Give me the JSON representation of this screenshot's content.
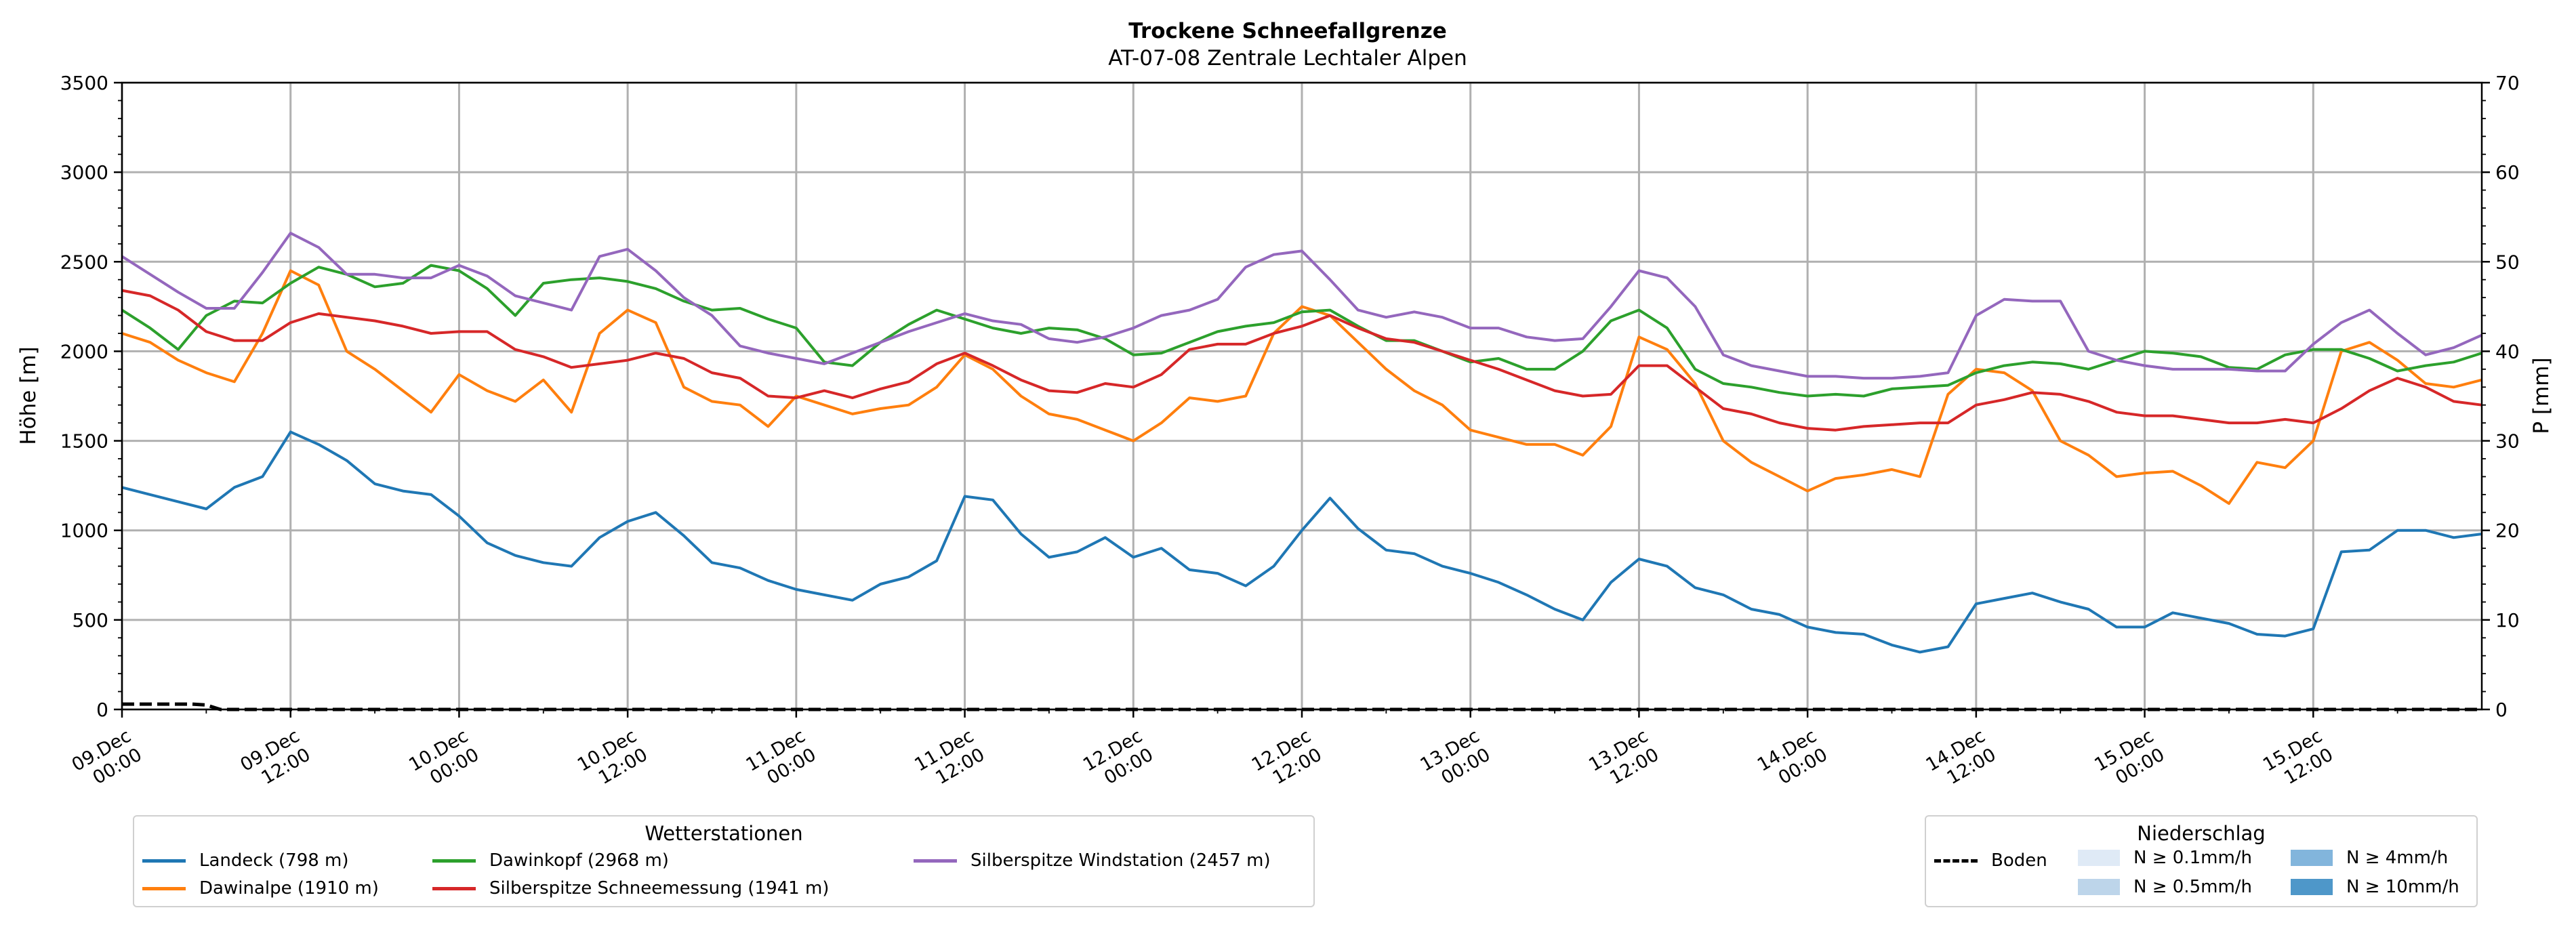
{
  "chart_data": {
    "type": "line",
    "title": "Trockene Schneefallgrenze",
    "subtitle": "AT-07-08 Zentrale Lechtaler Alpen",
    "ylabel": "Höhe [m]",
    "ylabel_right": "P [mm]",
    "ylim": [
      0,
      3500
    ],
    "ylim_right": [
      0,
      70
    ],
    "yticks": [
      0,
      500,
      1000,
      1500,
      2000,
      2500,
      3000,
      3500
    ],
    "yticks_right": [
      0,
      10,
      20,
      30,
      40,
      50,
      60,
      70
    ],
    "x_range_hours": [
      0,
      168
    ],
    "x_ticks": [
      {
        "hour": 0,
        "label1": "09.Dec",
        "label2": "00:00"
      },
      {
        "hour": 12,
        "label1": "09.Dec",
        "label2": "12:00"
      },
      {
        "hour": 24,
        "label1": "10.Dec",
        "label2": "00:00"
      },
      {
        "hour": 36,
        "label1": "10.Dec",
        "label2": "12:00"
      },
      {
        "hour": 48,
        "label1": "11.Dec",
        "label2": "00:00"
      },
      {
        "hour": 60,
        "label1": "11.Dec",
        "label2": "12:00"
      },
      {
        "hour": 72,
        "label1": "12.Dec",
        "label2": "00:00"
      },
      {
        "hour": 84,
        "label1": "12.Dec",
        "label2": "12:00"
      },
      {
        "hour": 96,
        "label1": "13.Dec",
        "label2": "00:00"
      },
      {
        "hour": 108,
        "label1": "13.Dec",
        "label2": "12:00"
      },
      {
        "hour": 120,
        "label1": "14.Dec",
        "label2": "00:00"
      },
      {
        "hour": 132,
        "label1": "14.Dec",
        "label2": "12:00"
      },
      {
        "hour": 144,
        "label1": "15.Dec",
        "label2": "00:00"
      },
      {
        "hour": 156,
        "label1": "15.Dec",
        "label2": "12:00"
      }
    ],
    "grid": true,
    "series": [
      {
        "name": "Landeck (798 m)",
        "color": "#1f77b4",
        "hours": [
          0,
          2,
          4,
          6,
          8,
          10,
          12,
          14,
          16,
          18,
          20,
          22,
          24,
          26,
          28,
          30,
          32,
          34,
          36,
          38,
          40,
          42,
          44,
          46,
          48,
          50,
          52,
          54,
          56,
          58,
          60,
          62,
          64,
          66,
          68,
          70,
          72,
          74,
          76,
          78,
          80,
          82,
          84,
          86,
          88,
          90,
          92,
          94,
          96,
          98,
          100,
          102,
          104,
          106,
          108,
          110,
          112,
          114,
          116,
          118,
          120,
          122,
          124,
          126,
          128,
          130,
          132,
          134,
          136,
          138,
          140,
          142,
          144,
          146,
          148,
          150,
          152,
          154,
          156,
          158,
          160,
          162,
          164,
          166,
          168
        ],
        "values": [
          1240,
          1200,
          1160,
          1120,
          1240,
          1300,
          1550,
          1480,
          1390,
          1260,
          1220,
          1200,
          1080,
          930,
          860,
          820,
          800,
          960,
          1050,
          1100,
          970,
          820,
          790,
          720,
          670,
          640,
          610,
          700,
          740,
          830,
          1190,
          1170,
          980,
          850,
          880,
          960,
          850,
          900,
          780,
          760,
          690,
          800,
          1000,
          1180,
          1010,
          890,
          870,
          800,
          760,
          710,
          640,
          560,
          500,
          710,
          840,
          800,
          680,
          640,
          560,
          530,
          460,
          430,
          420,
          360,
          320,
          350,
          590,
          620,
          650,
          600,
          560,
          460,
          460,
          540,
          510,
          480,
          420,
          410,
          450,
          880,
          890,
          1000,
          1000,
          960,
          980
        ]
      },
      {
        "name": "Dawinalpe (1910 m)",
        "color": "#ff7f0e",
        "hours": [
          0,
          2,
          4,
          6,
          8,
          10,
          12,
          14,
          16,
          18,
          20,
          22,
          24,
          26,
          28,
          30,
          32,
          34,
          36,
          38,
          40,
          42,
          44,
          46,
          48,
          50,
          52,
          54,
          56,
          58,
          60,
          62,
          64,
          66,
          68,
          70,
          72,
          74,
          76,
          78,
          80,
          82,
          84,
          86,
          88,
          90,
          92,
          94,
          96,
          98,
          100,
          102,
          104,
          106,
          108,
          110,
          112,
          114,
          116,
          118,
          120,
          122,
          124,
          126,
          128,
          130,
          132,
          134,
          136,
          138,
          140,
          142,
          144,
          146,
          148,
          150,
          152,
          154,
          156,
          158,
          160,
          162,
          164,
          166,
          168
        ],
        "values": [
          2100,
          2050,
          1950,
          1880,
          1830,
          2100,
          2450,
          2370,
          2000,
          1900,
          1780,
          1660,
          1870,
          1780,
          1720,
          1840,
          1660,
          2100,
          2230,
          2160,
          1800,
          1720,
          1700,
          1580,
          1750,
          1700,
          1650,
          1680,
          1700,
          1800,
          1980,
          1900,
          1750,
          1650,
          1620,
          1560,
          1500,
          1600,
          1740,
          1720,
          1750,
          2100,
          2250,
          2200,
          2050,
          1900,
          1780,
          1700,
          1560,
          1520,
          1480,
          1480,
          1420,
          1580,
          2080,
          2010,
          1820,
          1500,
          1380,
          1300,
          1220,
          1290,
          1310,
          1340,
          1300,
          1760,
          1900,
          1880,
          1780,
          1500,
          1420,
          1300,
          1320,
          1330,
          1250,
          1150,
          1380,
          1350,
          1500,
          2000,
          2050,
          1950,
          1820,
          1800,
          1840
        ]
      },
      {
        "name": "Dawinkopf (2968 m)",
        "color": "#2ca02c",
        "hours": [
          0,
          2,
          4,
          6,
          8,
          10,
          12,
          14,
          16,
          18,
          20,
          22,
          24,
          26,
          28,
          30,
          32,
          34,
          36,
          38,
          40,
          42,
          44,
          46,
          48,
          50,
          52,
          54,
          56,
          58,
          60,
          62,
          64,
          66,
          68,
          70,
          72,
          74,
          76,
          78,
          80,
          82,
          84,
          86,
          88,
          90,
          92,
          94,
          96,
          98,
          100,
          102,
          104,
          106,
          108,
          110,
          112,
          114,
          116,
          118,
          120,
          122,
          124,
          126,
          128,
          130,
          132,
          134,
          136,
          138,
          140,
          142,
          144,
          146,
          148,
          150,
          152,
          154,
          156,
          158,
          160,
          162,
          164,
          166,
          168
        ],
        "values": [
          2230,
          2130,
          2010,
          2200,
          2280,
          2270,
          2380,
          2470,
          2430,
          2360,
          2380,
          2480,
          2450,
          2350,
          2200,
          2380,
          2400,
          2410,
          2390,
          2350,
          2280,
          2230,
          2240,
          2180,
          2130,
          1940,
          1920,
          2050,
          2150,
          2230,
          2180,
          2130,
          2100,
          2130,
          2120,
          2070,
          1980,
          1990,
          2050,
          2110,
          2140,
          2160,
          2220,
          2230,
          2140,
          2060,
          2060,
          2000,
          1940,
          1960,
          1900,
          1900,
          2000,
          2170,
          2230,
          2130,
          1900,
          1820,
          1800,
          1770,
          1750,
          1760,
          1750,
          1790,
          1800,
          1810,
          1880,
          1920,
          1940,
          1930,
          1900,
          1950,
          2000,
          1990,
          1970,
          1910,
          1900,
          1980,
          2010,
          2010,
          1960,
          1890,
          1920,
          1940,
          1990
        ]
      },
      {
        "name": "Silberspitze Schneemessung (1941 m)",
        "color": "#d62728",
        "hours": [
          0,
          2,
          4,
          6,
          8,
          10,
          12,
          14,
          16,
          18,
          20,
          22,
          24,
          26,
          28,
          30,
          32,
          34,
          36,
          38,
          40,
          42,
          44,
          46,
          48,
          50,
          52,
          54,
          56,
          58,
          60,
          62,
          64,
          66,
          68,
          70,
          72,
          74,
          76,
          78,
          80,
          82,
          84,
          86,
          88,
          90,
          92,
          94,
          96,
          98,
          100,
          102,
          104,
          106,
          108,
          110,
          112,
          114,
          116,
          118,
          120,
          122,
          124,
          126,
          128,
          130,
          132,
          134,
          136,
          138,
          140,
          142,
          144,
          146,
          148,
          150,
          152,
          154,
          156,
          158,
          160,
          162,
          164,
          166,
          168
        ],
        "values": [
          2340,
          2310,
          2230,
          2110,
          2060,
          2060,
          2160,
          2210,
          2190,
          2170,
          2140,
          2100,
          2110,
          2110,
          2010,
          1970,
          1910,
          1930,
          1950,
          1990,
          1960,
          1880,
          1850,
          1750,
          1740,
          1780,
          1740,
          1790,
          1830,
          1930,
          1990,
          1920,
          1840,
          1780,
          1770,
          1820,
          1800,
          1870,
          2010,
          2040,
          2040,
          2100,
          2140,
          2200,
          2130,
          2070,
          2050,
          2000,
          1950,
          1900,
          1840,
          1780,
          1750,
          1760,
          1920,
          1920,
          1800,
          1680,
          1650,
          1600,
          1570,
          1560,
          1580,
          1590,
          1600,
          1600,
          1700,
          1730,
          1770,
          1760,
          1720,
          1660,
          1640,
          1640,
          1620,
          1600,
          1600,
          1620,
          1600,
          1680,
          1780,
          1850,
          1800,
          1720,
          1700
        ]
      },
      {
        "name": "Silberspitze Windstation (2457 m)",
        "color": "#9467bd",
        "hours": [
          0,
          2,
          4,
          6,
          8,
          10,
          12,
          14,
          16,
          18,
          20,
          22,
          24,
          26,
          28,
          30,
          32,
          34,
          36,
          38,
          40,
          42,
          44,
          46,
          48,
          50,
          52,
          54,
          56,
          58,
          60,
          62,
          64,
          66,
          68,
          70,
          72,
          74,
          76,
          78,
          80,
          82,
          84,
          86,
          88,
          90,
          92,
          94,
          96,
          98,
          100,
          102,
          104,
          106,
          108,
          110,
          112,
          114,
          116,
          118,
          120,
          122,
          124,
          126,
          128,
          130,
          132,
          134,
          136,
          138,
          140,
          142,
          144,
          146,
          148,
          150,
          152,
          154,
          156,
          158,
          160,
          162,
          164,
          166,
          168
        ],
        "values": [
          2530,
          2430,
          2330,
          2240,
          2240,
          2440,
          2660,
          2580,
          2430,
          2430,
          2410,
          2410,
          2480,
          2420,
          2310,
          2270,
          2230,
          2530,
          2570,
          2450,
          2300,
          2200,
          2030,
          1990,
          1960,
          1930,
          1990,
          2050,
          2110,
          2160,
          2210,
          2170,
          2150,
          2070,
          2050,
          2080,
          2130,
          2200,
          2230,
          2290,
          2470,
          2540,
          2560,
          2400,
          2230,
          2190,
          2220,
          2190,
          2130,
          2130,
          2080,
          2060,
          2070,
          2250,
          2450,
          2410,
          2250,
          1980,
          1920,
          1890,
          1860,
          1860,
          1850,
          1850,
          1860,
          1880,
          2200,
          2290,
          2280,
          2280,
          2000,
          1950,
          1920,
          1900,
          1900,
          1900,
          1890,
          1890,
          2040,
          2160,
          2230,
          2100,
          1980,
          2020,
          2090
        ]
      }
    ],
    "ground": {
      "name": "Boden",
      "color": "#000000",
      "hours": [
        0,
        1,
        2,
        3,
        4,
        5,
        6,
        7,
        8,
        9,
        10,
        12,
        24,
        48,
        72,
        96,
        120,
        144,
        168
      ],
      "values": [
        30,
        30,
        30,
        30,
        30,
        30,
        25,
        0,
        0,
        0,
        0,
        0,
        0,
        0,
        0,
        0,
        0,
        0,
        0
      ]
    },
    "precip_levels": [
      {
        "label": "N ≥ 0.1mm/h",
        "color": "#dfeaf6"
      },
      {
        "label": "N ≥ 0.5mm/h",
        "color": "#bdd5ea"
      },
      {
        "label": "N ≥ 4mm/h",
        "color": "#82b5dc"
      },
      {
        "label": "N ≥ 10mm/h",
        "color": "#4e97c9"
      }
    ],
    "legend_stations_title": "Wetterstationen",
    "legend_precip_title": "Niederschlag"
  }
}
